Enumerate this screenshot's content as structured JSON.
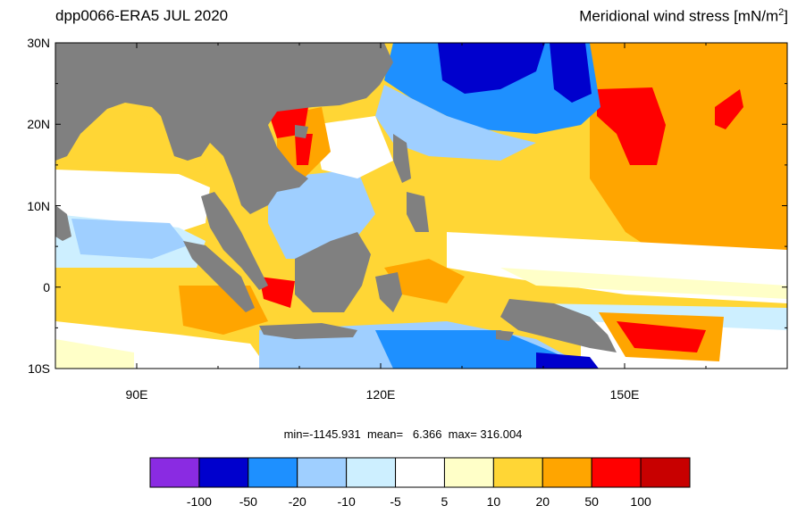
{
  "header": {
    "left_title": "dpp0066-ERA5  JUL 2020",
    "right_title": "Meridional wind stress [mN/m",
    "right_title_sup": "2",
    "right_title_end": "]"
  },
  "axes": {
    "y_labels": [
      "30N",
      "20N",
      "10N",
      "0",
      "10S"
    ],
    "x_labels": [
      "90E",
      "120E",
      "150E"
    ],
    "lon_range": [
      80,
      170
    ],
    "lat_range": [
      -10,
      30
    ]
  },
  "stats": {
    "text": "min=-1145.931  mean=   6.366  max= 316.004"
  },
  "colorbar": {
    "colors": [
      "#8a2be2",
      "#0000cd",
      "#1e90ff",
      "#9fcfff",
      "#cdefff",
      "#ffffff",
      "#ffffc8",
      "#ffd635",
      "#ffa500",
      "#ff0000",
      "#c80000"
    ],
    "labels": [
      "-100",
      "-50",
      "-20",
      "-10",
      "-5",
      "5",
      "10",
      "20",
      "50",
      "100"
    ]
  }
}
